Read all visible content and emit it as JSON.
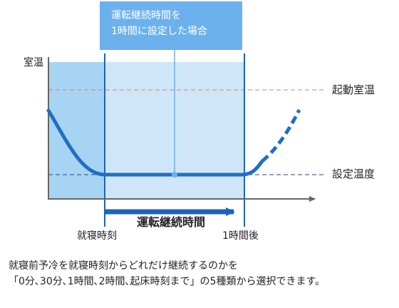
{
  "annotation": {
    "line1": "運転継続時間を",
    "line2": "1時間に設定した場合"
  },
  "labels": {
    "y_axis": "室温",
    "start_temp": "起動室温",
    "set_temp": "設定温度",
    "duration": "運転継続時間",
    "bedtime": "就寝時刻",
    "one_hour_later": "1時間後"
  },
  "caption": {
    "line1": "就寝前予冷を就寝時刻からどれだけ継続するのかを",
    "line2": "「0分､30分､1時間､2時間､起床時刻まで」の5種類から選択できます。"
  },
  "colors": {
    "panel_light": "#a8d4f3",
    "panel_lighter": "#cfe6f8",
    "note_bg": "#6bb1ee",
    "curve": "#1f6fc4",
    "bar": "#1c63c0",
    "start_line": "#e8795a",
    "set_line": "#2a3f8a",
    "axis": "#666666"
  }
}
